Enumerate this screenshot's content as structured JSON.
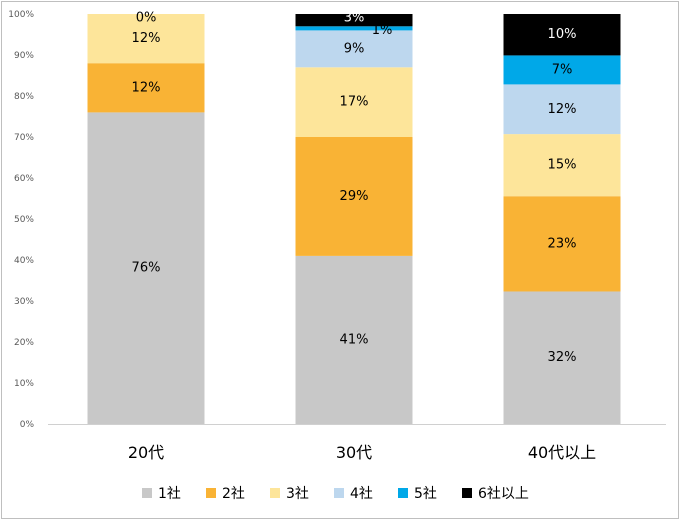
{
  "chart_data": {
    "type": "bar",
    "stacked": true,
    "categories": [
      "20代",
      "30代",
      "40代以上"
    ],
    "y_ticks": [
      "0%",
      "10%",
      "20%",
      "30%",
      "40%",
      "50%",
      "60%",
      "70%",
      "80%",
      "90%",
      "100%"
    ],
    "ylim": [
      0,
      100
    ],
    "grid": false,
    "legend_position": "bottom",
    "series": [
      {
        "name": "1社",
        "color": "#c8c8c8",
        "values": [
          76,
          41,
          32
        ],
        "labels": [
          "76%",
          "41%",
          "32%"
        ]
      },
      {
        "name": "2社",
        "color": "#f9b335",
        "values": [
          12,
          29,
          23
        ],
        "labels": [
          "12%",
          "29%",
          "23%"
        ]
      },
      {
        "name": "3社",
        "color": "#fde59a",
        "values": [
          12,
          17,
          15
        ],
        "labels": [
          "12%",
          "17%",
          "15%"
        ]
      },
      {
        "name": "4社",
        "color": "#bdd7ee",
        "values": [
          0,
          9,
          12
        ],
        "labels": [
          "",
          "9%",
          "12%"
        ]
      },
      {
        "name": "5社",
        "color": "#00a8e8",
        "values": [
          0,
          1,
          7
        ],
        "labels": [
          "",
          "1%",
          "7%"
        ]
      },
      {
        "name": "6社以上",
        "color": "#000000",
        "values": [
          0,
          3,
          10
        ],
        "labels": [
          "0%",
          "3%",
          "10%"
        ]
      }
    ]
  }
}
